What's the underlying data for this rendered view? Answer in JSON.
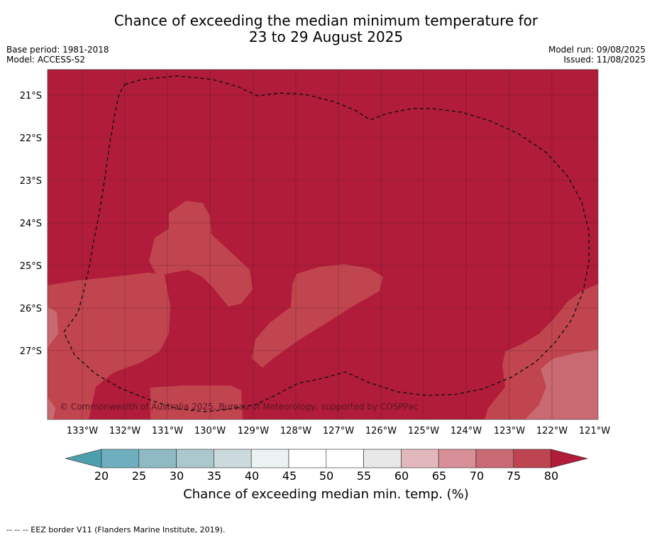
{
  "title_line1": "Chance of exceeding the median minimum temperature for",
  "title_line2": "23 to 29 August 2025",
  "meta": {
    "base_period": "Base period: 1981-2018",
    "model": "Model: ACCESS-S2",
    "model_run": "Model run: 09/08/2025",
    "issued": "Issued: 11/08/2025"
  },
  "map": {
    "lat_labels": [
      "21°S",
      "22°S",
      "23°S",
      "24°S",
      "25°S",
      "26°S",
      "27°S"
    ],
    "lon_labels": [
      "133°W",
      "132°W",
      "131°W",
      "130°W",
      "129°W",
      "128°W",
      "127°W",
      "126°W",
      "125°W",
      "124°W",
      "123°W",
      "122°W",
      "121°W"
    ],
    "copyright": "© Commonwealth of Australia 2025, Bureau of Meteorology, supported by COSPPac",
    "colors": {
      "band_80_plus": "#b01c39",
      "band_75_80": "#c1454f",
      "band_70_75": "#c96a72"
    }
  },
  "colorbar": {
    "ticks": [
      "20",
      "25",
      "30",
      "35",
      "40",
      "45",
      "50",
      "55",
      "60",
      "65",
      "70",
      "75",
      "80"
    ],
    "colors": [
      "#4e9fae",
      "#6faebe",
      "#8fbac4",
      "#abc8cd",
      "#cbdadd",
      "#ecf1f2",
      "#ffffff",
      "#ffffff",
      "#e8e8e8",
      "#e2b8bc",
      "#d88f97",
      "#ca6a74",
      "#be4452",
      "#b01c39"
    ],
    "label": "Chance of exceeding median min. temp. (%)"
  },
  "footer": "--  --  -- EEZ border V11 (Flanders Marine Institute, 2019)."
}
